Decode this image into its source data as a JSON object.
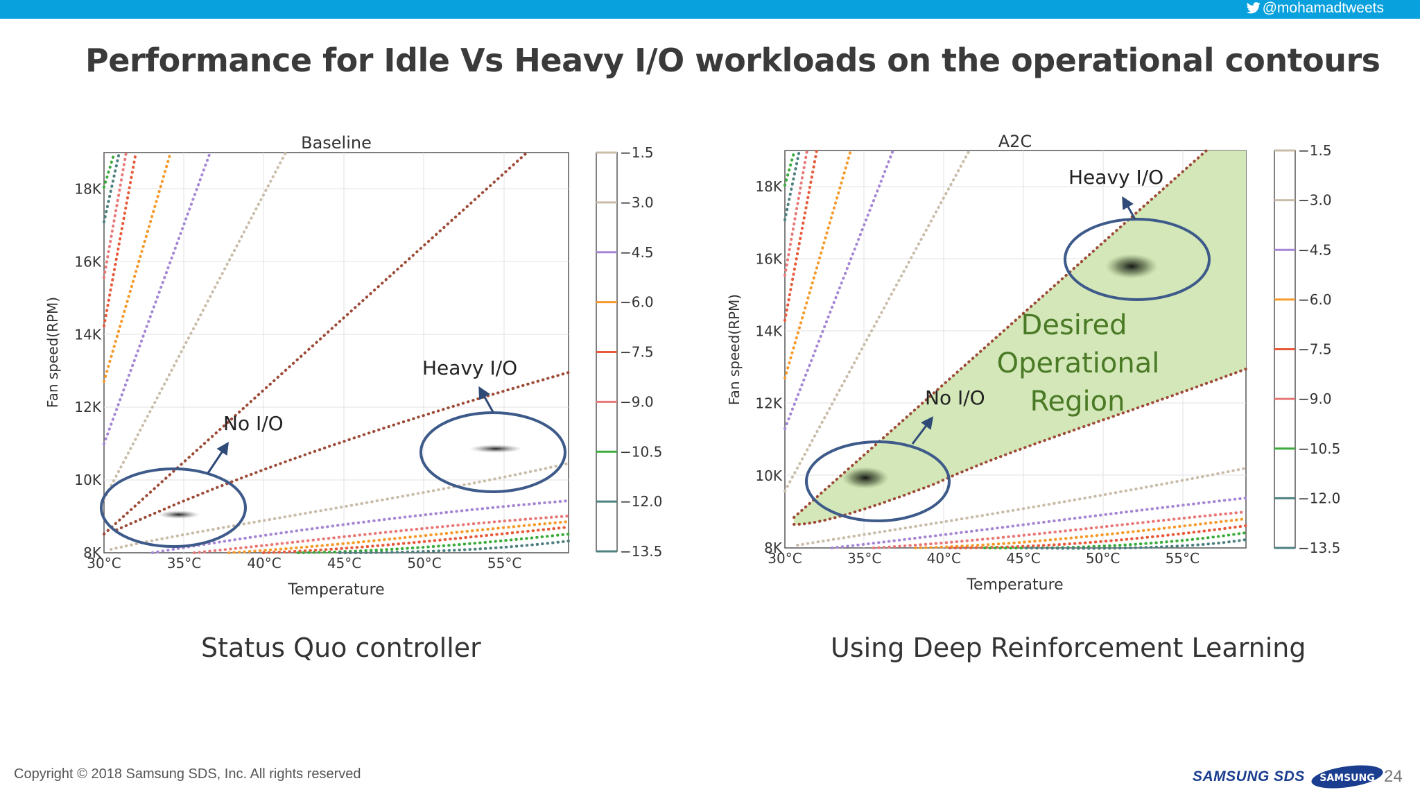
{
  "header": {
    "handle": "@mohamadtweets",
    "title": "Performance for Idle Vs Heavy I/O workloads on the operational contours"
  },
  "colors": {
    "topbar": "#09a1dd",
    "ellipse": "#3d5a8a",
    "desired_region": "#d3e7b8",
    "desired_text": "#4a7a25"
  },
  "chart_data": [
    {
      "type": "contour",
      "title": "Baseline",
      "xlabel": "Temperature",
      "ylabel": "Fan speed(RPM)",
      "xlim": [
        30,
        59
      ],
      "ylim": [
        8000,
        19000
      ],
      "xticks": [
        30,
        35,
        40,
        45,
        50,
        55
      ],
      "xtick_labels": [
        "30°C",
        "35°C",
        "40°C",
        "45°C",
        "50°C",
        "55°C"
      ],
      "yticks": [
        8000,
        10000,
        12000,
        14000,
        16000,
        18000
      ],
      "ytick_labels": [
        "8K",
        "10K",
        "12K",
        "14K",
        "16K",
        "18K"
      ],
      "colorbar_ticks": [
        "−1.5",
        "−3.0",
        "−4.5",
        "−6.0",
        "−7.5",
        "−9.0",
        "−10.5",
        "−12.0",
        "−13.5"
      ],
      "contour_levels": [
        -1.5,
        -3.0,
        -4.5,
        -6.0,
        -7.5,
        -9.0,
        -10.5,
        -12.0,
        -13.5
      ],
      "operating_points": [
        {
          "label": "No I/O",
          "temperature": 34.5,
          "fan_speed": 9000
        },
        {
          "label": "Heavy I/O",
          "temperature": 55.3,
          "fan_speed": 10900
        }
      ],
      "grid": true
    },
    {
      "type": "contour",
      "title": "A2C",
      "xlabel": "Temperature",
      "ylabel": "Fan speed(RPM)",
      "xlim": [
        30,
        59
      ],
      "ylim": [
        8000,
        19000
      ],
      "xticks": [
        30,
        35,
        40,
        45,
        50,
        55
      ],
      "xtick_labels": [
        "30°C",
        "35°C",
        "40°C",
        "45°C",
        "50°C",
        "55°C"
      ],
      "yticks": [
        8000,
        10000,
        12000,
        14000,
        16000,
        18000
      ],
      "ytick_labels": [
        "8K",
        "10K",
        "12K",
        "14K",
        "16K",
        "18K"
      ],
      "colorbar_ticks": [
        "−1.5",
        "−3.0",
        "−4.5",
        "−6.0",
        "−7.5",
        "−9.0",
        "−10.5",
        "−12.0",
        "−13.5"
      ],
      "contour_levels": [
        -1.5,
        -3.0,
        -4.5,
        -6.0,
        -7.5,
        -9.0,
        -10.5,
        -12.0,
        -13.5
      ],
      "operating_points": [
        {
          "label": "No I/O",
          "temperature": 35,
          "fan_speed": 10000
        },
        {
          "label": "Heavy I/O",
          "temperature": 51.8,
          "fan_speed": 15700
        }
      ],
      "region_label": [
        "Desired",
        "Operational",
        "Region"
      ],
      "grid": true
    }
  ],
  "captions": {
    "left": "Status Quo controller",
    "right": "Using Deep Reinforcement Learning"
  },
  "footer": {
    "copyright": "Copyright © 2018 Samsung SDS, Inc. All rights reserved",
    "brand": "SAMSUNG SDS",
    "logo": "SAMSUNG",
    "page": "24"
  }
}
